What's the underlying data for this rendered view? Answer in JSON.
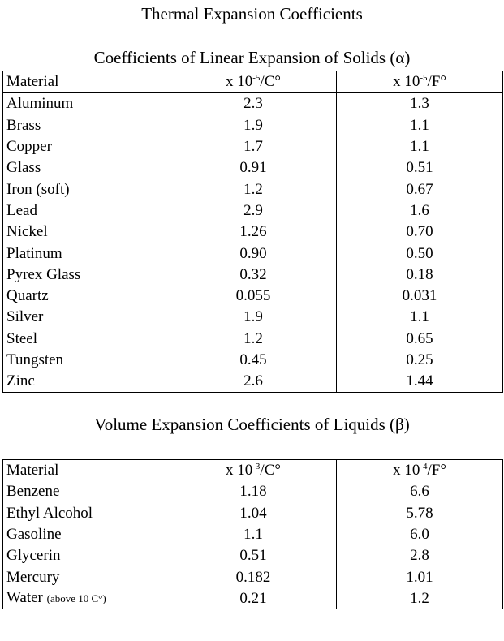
{
  "page_title": "Thermal Expansion Coefficients",
  "solids": {
    "title": "Coefficients of Linear Expansion of Solids (α)",
    "header": {
      "material": "Material",
      "col1_prefix": "x 10",
      "col1_exp": "-5",
      "col1_unit": "/C°",
      "col2_prefix": "x 10",
      "col2_exp": "-5",
      "col2_unit": "/F°"
    },
    "rows": [
      {
        "material": "Aluminum",
        "c": "2.3",
        "f": "1.3"
      },
      {
        "material": "Brass",
        "c": "1.9",
        "f": "1.1"
      },
      {
        "material": "Copper",
        "c": "1.7",
        "f": "1.1"
      },
      {
        "material": "Glass",
        "c": "0.91",
        "f": "0.51"
      },
      {
        "material": "Iron (soft)",
        "c": "1.2",
        "f": "0.67"
      },
      {
        "material": "Lead",
        "c": "2.9",
        "f": "1.6"
      },
      {
        "material": "Nickel",
        "c": "1.26",
        "f": "0.70"
      },
      {
        "material": "Platinum",
        "c": "0.90",
        "f": "0.50"
      },
      {
        "material": "Pyrex Glass",
        "c": "0.32",
        "f": "0.18"
      },
      {
        "material": "Quartz",
        "c": "0.055",
        "f": "0.031"
      },
      {
        "material": "Silver",
        "c": "1.9",
        "f": "1.1"
      },
      {
        "material": "Steel",
        "c": "1.2",
        "f": "0.65"
      },
      {
        "material": "Tungsten",
        "c": "0.45",
        "f": "0.25"
      },
      {
        "material": "Zinc",
        "c": "2.6",
        "f": "1.44"
      }
    ]
  },
  "liquids": {
    "title": "Volume Expansion Coefficients of Liquids (β)",
    "header": {
      "material": "Material",
      "col1_prefix": "x 10",
      "col1_exp": "-3",
      "col1_unit": "/C°",
      "col2_prefix": "x 10",
      "col2_exp": "-4",
      "col2_unit": "/F°"
    },
    "rows": [
      {
        "material": "Benzene",
        "c": "1.18",
        "f": "6.6"
      },
      {
        "material": "Ethyl Alcohol",
        "c": "1.04",
        "f": "5.78"
      },
      {
        "material": "Gasoline",
        "c": "1.1",
        "f": "6.0"
      },
      {
        "material": "Glycerin",
        "c": "0.51",
        "f": "2.8"
      },
      {
        "material": "Mercury",
        "c": "0.182",
        "f": "1.01"
      },
      {
        "material": "Water",
        "note": "(above 10 C°)",
        "c": "0.21",
        "f": "1.2"
      }
    ]
  }
}
